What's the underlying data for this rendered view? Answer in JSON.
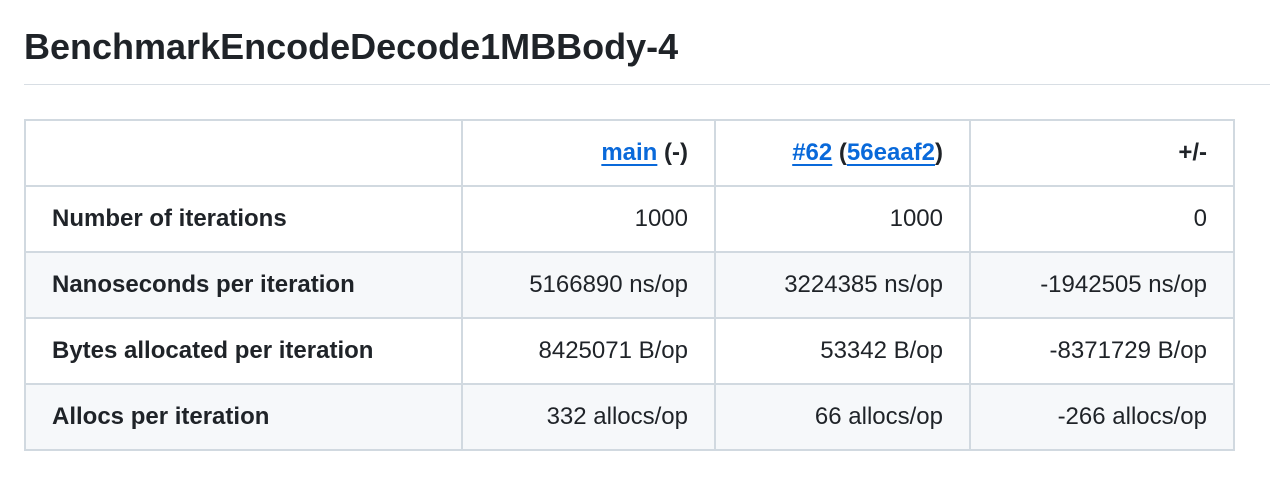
{
  "title": "BenchmarkEncodeDecode1MBBody-4",
  "header": {
    "main_link": "main",
    "main_suffix": " (-)",
    "pr_link": "#62",
    "pr_open": " (",
    "commit_link": "56eaaf2",
    "pr_close": ")",
    "diff": "+/-"
  },
  "rows": [
    {
      "label": "Number of iterations",
      "main": "1000",
      "pr": "1000",
      "diff": "0"
    },
    {
      "label": "Nanoseconds per iteration",
      "main": "5166890 ns/op",
      "pr": "3224385 ns/op",
      "diff": "-1942505 ns/op"
    },
    {
      "label": "Bytes allocated per iteration",
      "main": "8425071 B/op",
      "pr": "53342 B/op",
      "diff": "-8371729 B/op"
    },
    {
      "label": "Allocs per iteration",
      "main": "332 allocs/op",
      "pr": "66 allocs/op",
      "diff": "-266 allocs/op"
    }
  ]
}
